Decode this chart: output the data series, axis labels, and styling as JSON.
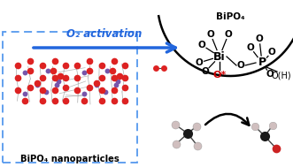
{
  "title": "BiPO₄ nanoparticles",
  "box_color": "#5599ee",
  "background": "#ffffff",
  "arrow_color": "#2266dd",
  "o2_text": "O₂ activation",
  "o2_color": "#2266dd",
  "o_star_color": "#cc0000",
  "o_star_text": "O*",
  "bipo4_text": "BiPO₄",
  "oh_text": "O(H)",
  "crystal_red": "#dd2222",
  "crystal_purple": "#7755aa",
  "crystal_gray": "#888888",
  "methane_c": "#1a1a1a",
  "methane_h": "#d0bfbf",
  "form_o": "#cc2222",
  "o2_red": "#dd2222",
  "bond_color": "#444444",
  "line_color": "#aaaaaa"
}
